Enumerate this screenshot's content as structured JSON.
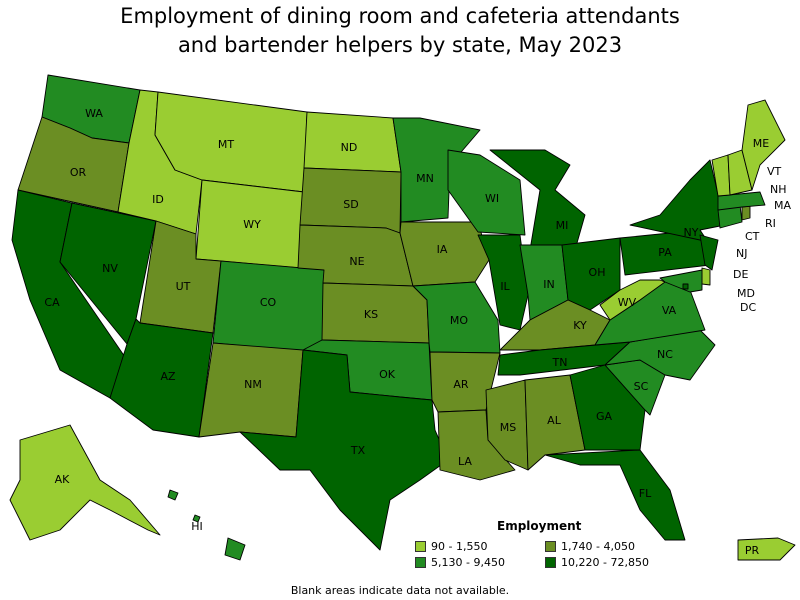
{
  "title_line1": "Employment of dining room and cafeteria attendants",
  "title_line2": "and bartender helpers by state, May 2023",
  "colors": {
    "c1": "#9acd32",
    "c2": "#6b8e23",
    "c3": "#228b22",
    "c4": "#006400"
  },
  "legend": {
    "title": "Employment",
    "items": [
      {
        "label": "90 - 1,550",
        "class": "c1"
      },
      {
        "label": "1,740 - 4,050",
        "class": "c2"
      },
      {
        "label": "5,130 - 9,450",
        "class": "c3"
      },
      {
        "label": "10,220 - 72,850",
        "class": "c4"
      }
    ]
  },
  "footnote": "Blank areas indicate data not available.",
  "states": {
    "AK": "c1",
    "AL": "c2",
    "AR": "c2",
    "AZ": "c4",
    "CA": "c4",
    "CO": "c3",
    "CT": "c3",
    "DC": "c4",
    "DE": "c1",
    "FL": "c4",
    "GA": "c4",
    "HI": "c3",
    "IA": "c2",
    "ID": "c1",
    "IL": "c4",
    "IN": "c3",
    "KS": "c2",
    "KY": "c2",
    "LA": "c2",
    "MA": "c3",
    "MD": "c3",
    "ME": "c1",
    "MI": "c4",
    "MN": "c3",
    "MO": "c3",
    "MS": "c2",
    "MT": "c1",
    "NC": "c3",
    "ND": "c1",
    "NE": "c2",
    "NH": "c1",
    "NJ": "c4",
    "NM": "c2",
    "NV": "c4",
    "NY": "c4",
    "OH": "c4",
    "OK": "c3",
    "OR": "c2",
    "PA": "c4",
    "PR": "c1",
    "RI": "c2",
    "SC": "c3",
    "SD": "c2",
    "TN": "c4",
    "TX": "c4",
    "UT": "c2",
    "VA": "c3",
    "VT": "c1",
    "WA": "c3",
    "WI": "c3",
    "WV": "c1",
    "WY": "c1"
  }
}
